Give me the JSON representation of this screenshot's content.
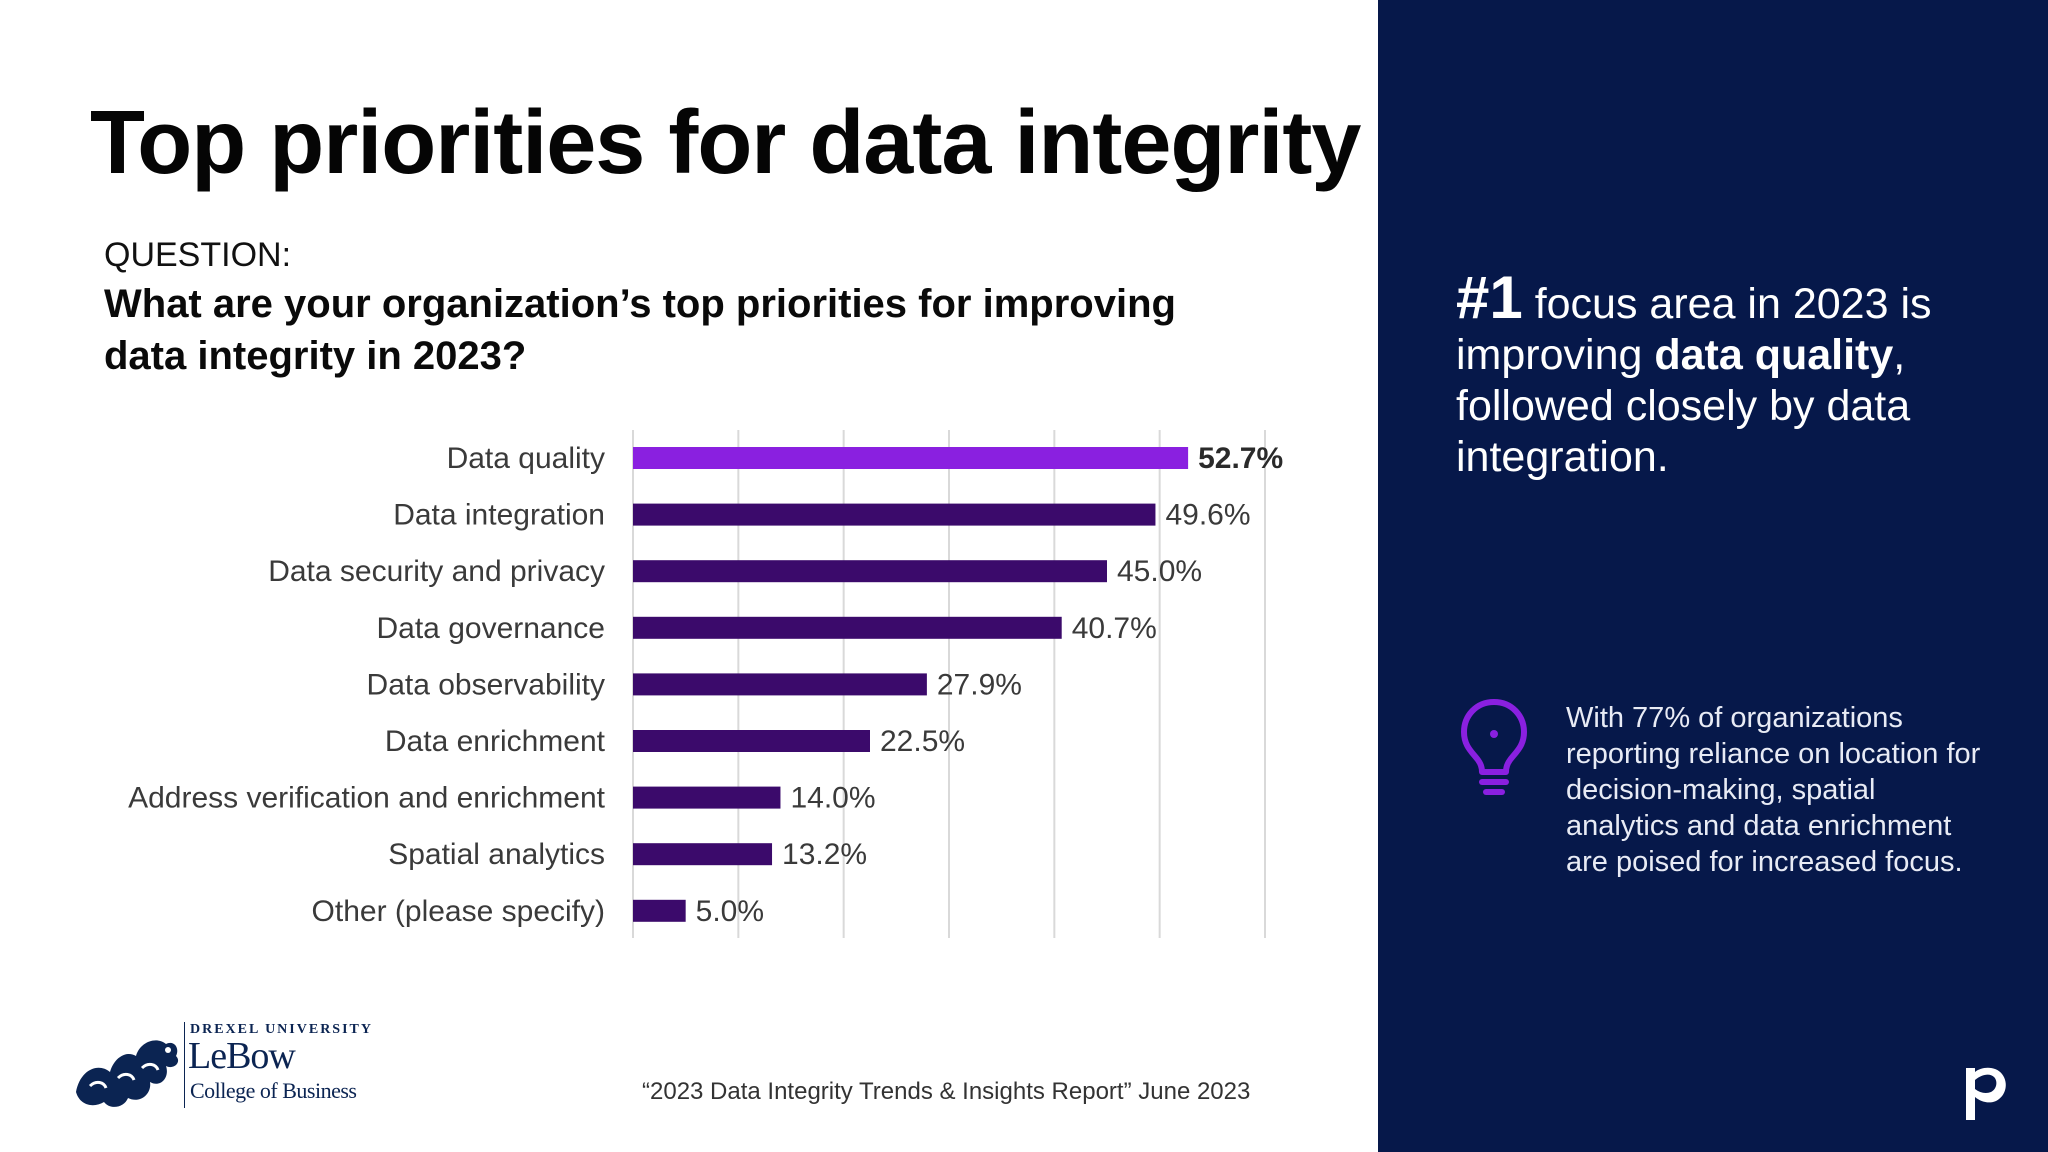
{
  "title": "Top priorities for data integrity",
  "question": {
    "label": "QUESTION:",
    "text": "What are your organization’s top priorities for improving data integrity in 2023?"
  },
  "chart_data": {
    "type": "bar",
    "orientation": "horizontal",
    "categories": [
      "Data quality",
      "Data integration",
      "Data security and privacy",
      "Data governance",
      "Data observability",
      "Data enrichment",
      "Address verification and enrichment",
      "Spatial analytics",
      "Other (please specify)"
    ],
    "values": [
      52.7,
      49.6,
      45.0,
      40.7,
      27.9,
      22.5,
      14.0,
      13.2,
      5.0
    ],
    "value_labels": [
      "52.7%",
      "49.6%",
      "45.0%",
      "40.7%",
      "27.9%",
      "22.5%",
      "14.0%",
      "13.2%",
      "5.0%"
    ],
    "xlim": [
      0,
      60
    ],
    "grid": true,
    "highlight_index": 0,
    "colors": {
      "highlight": "#8a20e0",
      "default": "#3b0a6b",
      "grid": "#d9d9d9"
    }
  },
  "callout": {
    "number": "#1",
    "text_1": " focus area in 2023 is improving ",
    "bold": "data quality",
    "text_2": ", followed closely by data integration."
  },
  "note": {
    "icon": "lightbulb-icon",
    "text": "With 77% of organizations reporting reliance on location for decision-making, spatial analytics and data enrichment are poised for increased focus."
  },
  "logo": {
    "university": "DREXEL UNIVERSITY",
    "name": "LeBow",
    "college": "College of Business"
  },
  "source": "“2023 Data Integrity Trends & Insights Report” June 2023",
  "colors": {
    "panel": "#06184a",
    "accent": "#8a20e0"
  }
}
